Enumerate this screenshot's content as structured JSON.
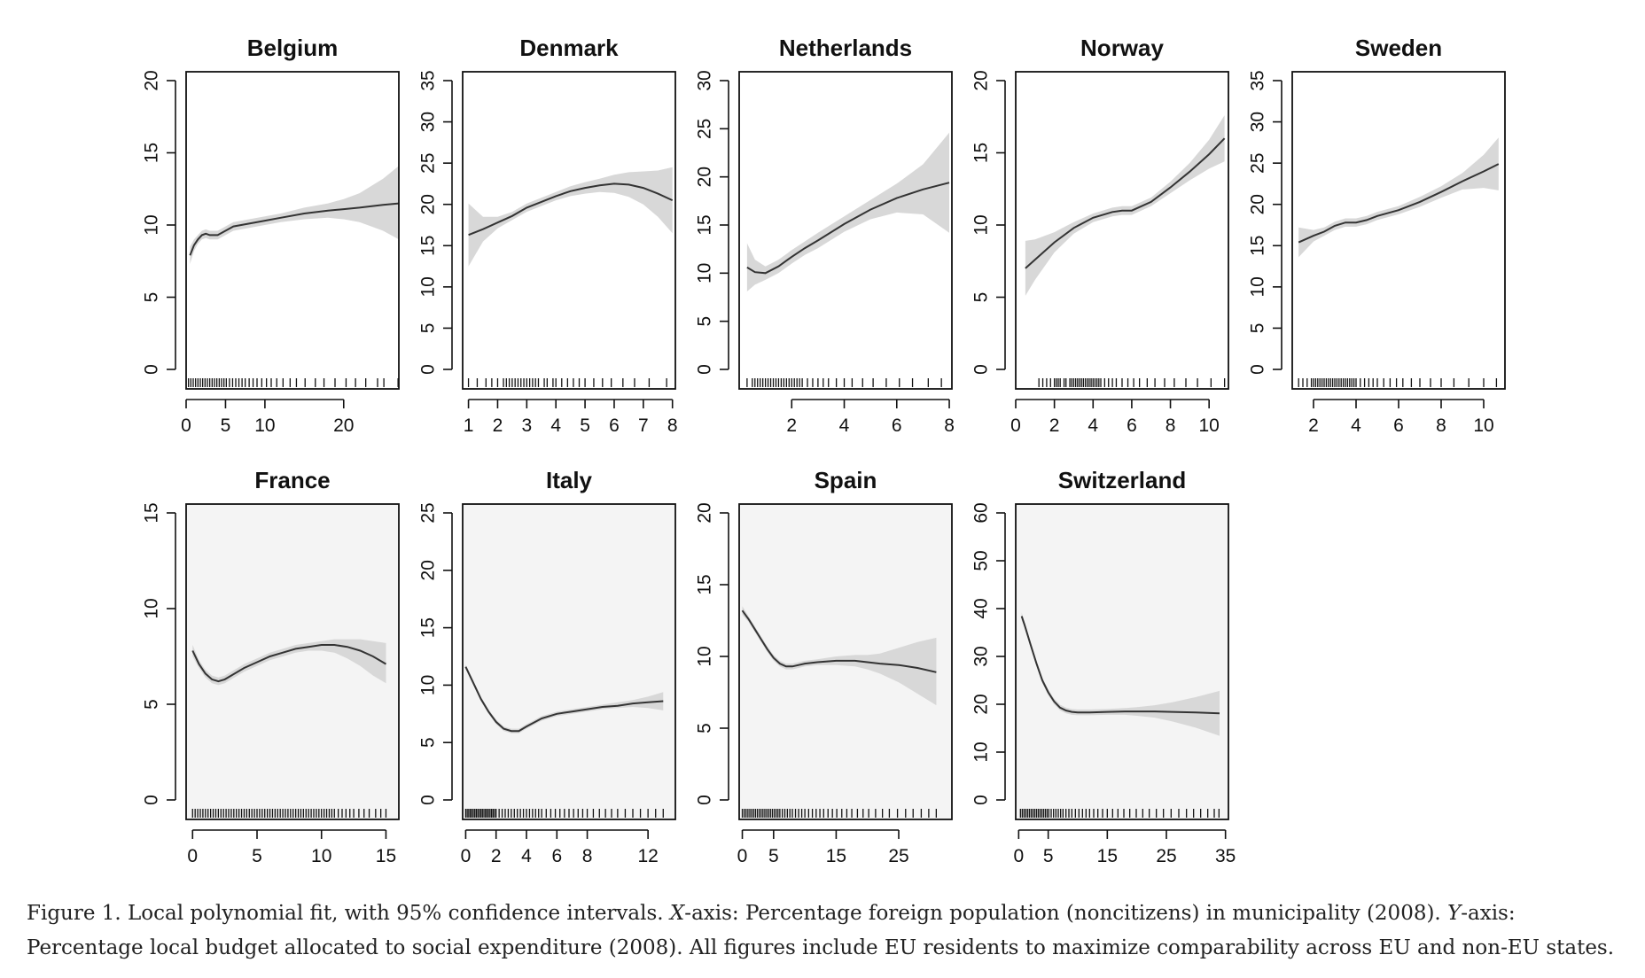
{
  "caption": {
    "prefix": "Figure 1. Local polynomial fit, with 95% confidence intervals. ",
    "x_letter": "X",
    "x_text": "-axis: Percentage foreign population (noncitizens) in municipality (2008). ",
    "y_letter": "Y",
    "y_text": "-axis: Percentage local budget allocated to social expenditure (2008). All figures include EU residents to maximize comparability across EU and non-EU states."
  },
  "chart_data": [
    {
      "type": "line",
      "title": "Belgium",
      "xlim": [
        0,
        27
      ],
      "ylim": [
        0,
        20
      ],
      "xticks": [
        0,
        5,
        10,
        20
      ],
      "yticks": [
        0,
        5,
        10,
        15,
        20
      ],
      "background": "white",
      "x": [
        0.5,
        1,
        1.5,
        2,
        2.5,
        3,
        4,
        5,
        6,
        8,
        10,
        12,
        15,
        18,
        20,
        22,
        25,
        27
      ],
      "y": [
        7.9,
        8.6,
        9.0,
        9.3,
        9.4,
        9.3,
        9.3,
        9.6,
        9.9,
        10.1,
        10.3,
        10.5,
        10.8,
        11.0,
        11.1,
        11.2,
        11.4,
        11.5
      ],
      "lower": [
        7.3,
        8.2,
        8.7,
        9.0,
        9.1,
        9.0,
        9.0,
        9.3,
        9.6,
        9.8,
        10.0,
        10.2,
        10.4,
        10.5,
        10.4,
        10.2,
        9.6,
        9.0
      ],
      "upper": [
        8.5,
        9.0,
        9.3,
        9.6,
        9.7,
        9.6,
        9.6,
        9.9,
        10.2,
        10.4,
        10.6,
        10.8,
        11.2,
        11.5,
        11.8,
        12.2,
        13.2,
        14.1
      ],
      "rug": [
        0.3,
        0.6,
        0.9,
        1.2,
        1.5,
        1.8,
        2.1,
        2.4,
        2.7,
        3.0,
        3.3,
        3.6,
        3.9,
        4.2,
        4.5,
        4.8,
        5.1,
        5.5,
        5.9,
        6.3,
        6.7,
        7.1,
        7.5,
        8.0,
        8.5,
        9.0,
        9.6,
        10.2,
        10.8,
        11.5,
        12.3,
        13.2,
        14.0,
        15.1,
        16.4,
        17.5,
        18.9,
        20.3,
        21.5,
        22.8,
        24.3,
        25.1,
        26.9
      ]
    },
    {
      "type": "line",
      "title": "Denmark",
      "xlim": [
        0.8,
        8.1
      ],
      "ylim": [
        0,
        35
      ],
      "xticks": [
        1,
        2,
        3,
        4,
        5,
        6,
        7,
        8
      ],
      "yticks": [
        0,
        5,
        10,
        15,
        20,
        25,
        30,
        35
      ],
      "background": "white",
      "x": [
        1,
        1.5,
        2,
        2.5,
        3,
        3.5,
        4,
        4.5,
        5,
        5.5,
        6,
        6.5,
        7,
        7.5,
        8
      ],
      "y": [
        16.3,
        17.0,
        17.8,
        18.6,
        19.6,
        20.3,
        21.0,
        21.6,
        22.0,
        22.3,
        22.5,
        22.4,
        22.0,
        21.3,
        20.5
      ],
      "lower": [
        12.5,
        15.5,
        17.1,
        18.1,
        19.1,
        19.8,
        20.5,
        21.0,
        21.3,
        21.5,
        21.4,
        20.9,
        20.0,
        18.5,
        16.5
      ],
      "upper": [
        20.1,
        18.5,
        18.5,
        19.1,
        20.1,
        20.8,
        21.5,
        22.2,
        22.7,
        23.1,
        23.6,
        23.9,
        24.0,
        24.1,
        24.5
      ],
      "rug": [
        1.0,
        1.3,
        1.6,
        1.8,
        2.0,
        2.2,
        2.3,
        2.4,
        2.5,
        2.6,
        2.7,
        2.8,
        2.9,
        3.0,
        3.1,
        3.2,
        3.3,
        3.4,
        3.6,
        3.7,
        3.9,
        4.0,
        4.2,
        4.4,
        4.6,
        4.8,
        5.0,
        5.3,
        5.6,
        5.9,
        6.3,
        6.7,
        7.2,
        7.8
      ]
    },
    {
      "type": "line",
      "title": "Netherlands",
      "xlim": [
        0,
        8.1
      ],
      "ylim": [
        0,
        30
      ],
      "xticks": [
        2,
        4,
        6,
        8
      ],
      "yticks": [
        0,
        5,
        10,
        15,
        20,
        25,
        30
      ],
      "background": "white",
      "x": [
        0.3,
        0.6,
        1,
        1.5,
        2,
        2.5,
        3,
        4,
        5,
        6,
        7,
        8
      ],
      "y": [
        10.6,
        10.1,
        10.0,
        10.7,
        11.7,
        12.6,
        13.4,
        15.1,
        16.6,
        17.8,
        18.7,
        19.4
      ],
      "lower": [
        8.1,
        8.8,
        9.3,
        10.0,
        11.0,
        11.9,
        12.6,
        14.3,
        15.6,
        16.3,
        16.1,
        14.2
      ],
      "upper": [
        13.1,
        11.4,
        10.7,
        11.4,
        12.4,
        13.3,
        14.2,
        15.9,
        17.6,
        19.3,
        21.3,
        24.6
      ],
      "rug": [
        0.3,
        0.5,
        0.6,
        0.7,
        0.8,
        0.9,
        1.0,
        1.1,
        1.2,
        1.3,
        1.4,
        1.5,
        1.6,
        1.7,
        1.8,
        1.9,
        2.0,
        2.1,
        2.2,
        2.3,
        2.4,
        2.6,
        2.8,
        3.0,
        3.2,
        3.4,
        3.7,
        4.0,
        4.3,
        4.7,
        5.1,
        5.6,
        6.1,
        6.6,
        7.2,
        7.7
      ]
    },
    {
      "type": "line",
      "title": "Norway",
      "xlim": [
        0,
        11
      ],
      "ylim": [
        0,
        20
      ],
      "xticks": [
        0,
        2,
        4,
        6,
        8,
        10
      ],
      "yticks": [
        0,
        5,
        10,
        15,
        20
      ],
      "background": "white",
      "x": [
        0.5,
        1,
        2,
        3,
        4,
        5,
        5.5,
        6,
        7,
        8,
        9,
        10,
        10.8
      ],
      "y": [
        7.0,
        7.6,
        8.8,
        9.8,
        10.5,
        10.9,
        11.0,
        11.0,
        11.6,
        12.6,
        13.7,
        14.9,
        16.0
      ],
      "lower": [
        5.1,
        6.2,
        8.1,
        9.4,
        10.2,
        10.6,
        10.7,
        10.7,
        11.3,
        12.2,
        13.1,
        13.9,
        14.4
      ],
      "upper": [
        8.9,
        9.0,
        9.5,
        10.2,
        10.8,
        11.2,
        11.3,
        11.3,
        11.9,
        13.0,
        14.3,
        15.9,
        17.6
      ],
      "rug": [
        1.2,
        1.4,
        1.6,
        1.8,
        2.0,
        2.1,
        2.2,
        2.3,
        2.5,
        2.6,
        2.8,
        2.9,
        3.0,
        3.1,
        3.2,
        3.3,
        3.4,
        3.5,
        3.6,
        3.7,
        3.8,
        3.9,
        4.0,
        4.1,
        4.2,
        4.3,
        4.4,
        4.6,
        4.8,
        5.0,
        5.2,
        5.5,
        5.8,
        6.1,
        6.4,
        6.8,
        7.2,
        7.7,
        8.2,
        8.8,
        9.4,
        10.1,
        10.8
      ]
    },
    {
      "type": "line",
      "title": "Sweden",
      "xlim": [
        1,
        11
      ],
      "ylim": [
        0,
        35
      ],
      "xticks": [
        2,
        4,
        6,
        8,
        10
      ],
      "yticks": [
        0,
        5,
        10,
        15,
        20,
        25,
        30,
        35
      ],
      "background": "white",
      "x": [
        1.3,
        2,
        2.5,
        3,
        3.5,
        4,
        4.5,
        5,
        6,
        7,
        8,
        9,
        10,
        10.7
      ],
      "y": [
        15.4,
        16.2,
        16.7,
        17.4,
        17.8,
        17.8,
        18.1,
        18.6,
        19.3,
        20.3,
        21.5,
        22.8,
        24.0,
        24.9
      ],
      "lower": [
        13.6,
        15.5,
        16.2,
        16.9,
        17.3,
        17.3,
        17.6,
        18.1,
        18.8,
        19.7,
        20.8,
        21.8,
        22.0,
        21.7
      ],
      "upper": [
        17.2,
        16.9,
        17.2,
        17.9,
        18.3,
        18.3,
        18.6,
        19.1,
        19.8,
        20.9,
        22.2,
        23.8,
        26.0,
        28.1
      ],
      "rug": [
        1.3,
        1.5,
        1.7,
        1.9,
        2.0,
        2.1,
        2.2,
        2.3,
        2.4,
        2.5,
        2.6,
        2.7,
        2.8,
        2.9,
        3.0,
        3.1,
        3.2,
        3.3,
        3.4,
        3.5,
        3.6,
        3.7,
        3.8,
        3.9,
        4.0,
        4.2,
        4.4,
        4.6,
        4.8,
        5.0,
        5.3,
        5.6,
        5.9,
        6.2,
        6.6,
        7.0,
        7.5,
        8.0,
        8.6,
        9.3,
        10.0,
        10.6
      ]
    },
    {
      "type": "line",
      "title": "France",
      "xlim": [
        -0.5,
        16
      ],
      "ylim": [
        0,
        15
      ],
      "xticks": [
        0,
        5,
        10,
        15
      ],
      "yticks": [
        0,
        5,
        10,
        15
      ],
      "background": "light-gray",
      "x": [
        0,
        0.5,
        1,
        1.5,
        2,
        2.5,
        3,
        4,
        5,
        6,
        7,
        8,
        9,
        10,
        11,
        12,
        13,
        14,
        15
      ],
      "y": [
        7.8,
        7.1,
        6.6,
        6.3,
        6.2,
        6.3,
        6.5,
        6.9,
        7.2,
        7.5,
        7.7,
        7.9,
        8.0,
        8.1,
        8.1,
        8.0,
        7.8,
        7.5,
        7.1
      ],
      "lower": [
        7.5,
        6.9,
        6.4,
        6.1,
        6.0,
        6.1,
        6.3,
        6.7,
        7.0,
        7.3,
        7.5,
        7.7,
        7.8,
        7.8,
        7.7,
        7.4,
        7.0,
        6.5,
        6.1
      ],
      "upper": [
        8.1,
        7.3,
        6.8,
        6.5,
        6.4,
        6.5,
        6.7,
        7.1,
        7.4,
        7.7,
        7.9,
        8.1,
        8.2,
        8.3,
        8.4,
        8.4,
        8.4,
        8.3,
        8.2
      ],
      "rug": [
        0.0,
        0.2,
        0.4,
        0.6,
        0.8,
        1.0,
        1.2,
        1.4,
        1.6,
        1.8,
        2.0,
        2.2,
        2.4,
        2.6,
        2.8,
        3.0,
        3.2,
        3.4,
        3.6,
        3.8,
        4.0,
        4.2,
        4.4,
        4.6,
        4.8,
        5.0,
        5.2,
        5.4,
        5.6,
        5.8,
        6.0,
        6.2,
        6.4,
        6.6,
        6.8,
        7.0,
        7.2,
        7.4,
        7.6,
        7.8,
        8.0,
        8.2,
        8.4,
        8.6,
        8.8,
        9.0,
        9.2,
        9.4,
        9.6,
        9.8,
        10.0,
        10.2,
        10.4,
        10.6,
        10.8,
        11.0,
        11.3,
        11.6,
        11.9,
        12.2,
        12.5,
        12.9,
        13.3,
        13.7,
        14.2,
        14.6,
        15.0
      ]
    },
    {
      "type": "line",
      "title": "Italy",
      "xlim": [
        -0.2,
        13.8
      ],
      "ylim": [
        0,
        25
      ],
      "xticks": [
        0,
        2,
        4,
        6,
        8,
        12
      ],
      "yticks": [
        0,
        5,
        10,
        15,
        20,
        25
      ],
      "background": "light-gray",
      "x": [
        0,
        0.5,
        1,
        1.5,
        2,
        2.5,
        3,
        3.5,
        4,
        5,
        6,
        7,
        8,
        9,
        10,
        11,
        12,
        13
      ],
      "y": [
        11.6,
        10.2,
        8.8,
        7.7,
        6.8,
        6.2,
        6.0,
        6.0,
        6.4,
        7.1,
        7.5,
        7.7,
        7.9,
        8.1,
        8.2,
        8.4,
        8.5,
        8.6
      ],
      "lower": [
        11.4,
        10.0,
        8.6,
        7.5,
        6.6,
        6.0,
        5.8,
        5.8,
        6.2,
        6.9,
        7.3,
        7.5,
        7.7,
        7.9,
        8.0,
        8.1,
        8.0,
        7.8
      ],
      "upper": [
        11.8,
        10.4,
        9.0,
        7.9,
        7.0,
        6.4,
        6.2,
        6.2,
        6.6,
        7.3,
        7.7,
        7.9,
        8.1,
        8.3,
        8.5,
        8.7,
        9.0,
        9.4
      ],
      "rug": [
        0.0,
        0.1,
        0.2,
        0.3,
        0.4,
        0.5,
        0.6,
        0.7,
        0.8,
        0.9,
        1.0,
        1.1,
        1.2,
        1.3,
        1.4,
        1.5,
        1.6,
        1.7,
        1.8,
        1.9,
        2.0,
        2.2,
        2.4,
        2.6,
        2.8,
        3.0,
        3.2,
        3.4,
        3.6,
        3.8,
        4.0,
        4.2,
        4.4,
        4.6,
        4.8,
        5.0,
        5.3,
        5.6,
        5.9,
        6.2,
        6.5,
        6.8,
        7.1,
        7.4,
        7.7,
        8.0,
        8.4,
        8.8,
        9.2,
        9.6,
        10.0,
        10.5,
        11.0,
        11.5,
        12.0,
        12.5,
        13.0
      ]
    },
    {
      "type": "line",
      "title": "Spain",
      "xlim": [
        -0.5,
        33.5
      ],
      "ylim": [
        0,
        20
      ],
      "xticks": [
        0,
        5,
        15,
        25
      ],
      "yticks": [
        0,
        5,
        10,
        15,
        20
      ],
      "background": "light-gray",
      "x": [
        0,
        1,
        2,
        3,
        4,
        5,
        6,
        7,
        8,
        9,
        10,
        12,
        15,
        18,
        20,
        22,
        25,
        28,
        31
      ],
      "y": [
        13.2,
        12.6,
        11.9,
        11.2,
        10.5,
        9.9,
        9.5,
        9.3,
        9.3,
        9.4,
        9.5,
        9.6,
        9.7,
        9.7,
        9.6,
        9.5,
        9.4,
        9.2,
        8.9
      ],
      "lower": [
        12.9,
        12.4,
        11.7,
        11.0,
        10.3,
        9.7,
        9.3,
        9.1,
        9.1,
        9.2,
        9.3,
        9.4,
        9.4,
        9.3,
        9.1,
        8.8,
        8.2,
        7.4,
        6.6
      ],
      "upper": [
        13.5,
        12.8,
        12.1,
        11.4,
        10.7,
        10.1,
        9.7,
        9.5,
        9.5,
        9.6,
        9.7,
        9.8,
        10.0,
        10.1,
        10.1,
        10.2,
        10.6,
        11.0,
        11.3
      ],
      "rug": [
        0.0,
        0.3,
        0.6,
        0.9,
        1.2,
        1.5,
        1.8,
        2.1,
        2.4,
        2.7,
        3.0,
        3.3,
        3.6,
        3.9,
        4.2,
        4.5,
        4.8,
        5.1,
        5.4,
        5.7,
        6.0,
        6.4,
        6.8,
        7.2,
        7.6,
        8.0,
        8.5,
        9.0,
        9.5,
        10.0,
        10.6,
        11.2,
        11.8,
        12.4,
        13.0,
        13.7,
        14.4,
        15.1,
        15.9,
        16.7,
        17.5,
        18.4,
        19.3,
        20.2,
        21.3,
        22.4,
        23.5,
        24.8,
        26.1,
        27.3,
        28.6,
        29.8,
        31.0
      ]
    },
    {
      "type": "line",
      "title": "Switzerland",
      "xlim": [
        -0.5,
        35.5
      ],
      "ylim": [
        0,
        60
      ],
      "xticks": [
        0,
        5,
        15,
        25,
        35
      ],
      "yticks": [
        0,
        10,
        20,
        30,
        40,
        50,
        60
      ],
      "background": "light-gray",
      "x": [
        0.5,
        1,
        2,
        3,
        4,
        5,
        6,
        7,
        8,
        9,
        10,
        12,
        15,
        18,
        20,
        23,
        26,
        30,
        34
      ],
      "y": [
        38.4,
        36.6,
        32.5,
        28.6,
        25.0,
        22.5,
        20.6,
        19.3,
        18.7,
        18.4,
        18.3,
        18.3,
        18.4,
        18.5,
        18.5,
        18.5,
        18.4,
        18.3,
        18.1
      ],
      "lower": [
        37.6,
        36.0,
        31.9,
        28.0,
        24.4,
        21.9,
        20.0,
        18.7,
        18.1,
        17.8,
        17.7,
        17.7,
        17.8,
        17.8,
        17.6,
        17.2,
        16.4,
        15.1,
        13.4
      ],
      "upper": [
        39.2,
        37.2,
        33.1,
        29.2,
        25.6,
        23.1,
        21.2,
        19.9,
        19.3,
        19.0,
        18.9,
        18.9,
        19.0,
        19.2,
        19.4,
        19.8,
        20.4,
        21.5,
        22.8
      ],
      "rug": [
        0.3,
        0.6,
        0.9,
        1.2,
        1.5,
        1.8,
        2.1,
        2.4,
        2.7,
        3.0,
        3.3,
        3.6,
        3.9,
        4.2,
        4.5,
        4.8,
        5.1,
        5.5,
        5.9,
        6.3,
        6.7,
        7.1,
        7.5,
        8.0,
        8.5,
        9.0,
        9.6,
        10.2,
        10.8,
        11.4,
        12.0,
        12.7,
        13.4,
        14.2,
        15.0,
        15.9,
        16.8,
        17.8,
        18.8,
        19.9,
        21.0,
        22.1,
        23.3,
        24.5,
        25.8,
        27.1,
        28.4,
        29.6,
        30.8,
        32.0,
        33.1,
        33.9
      ]
    }
  ]
}
